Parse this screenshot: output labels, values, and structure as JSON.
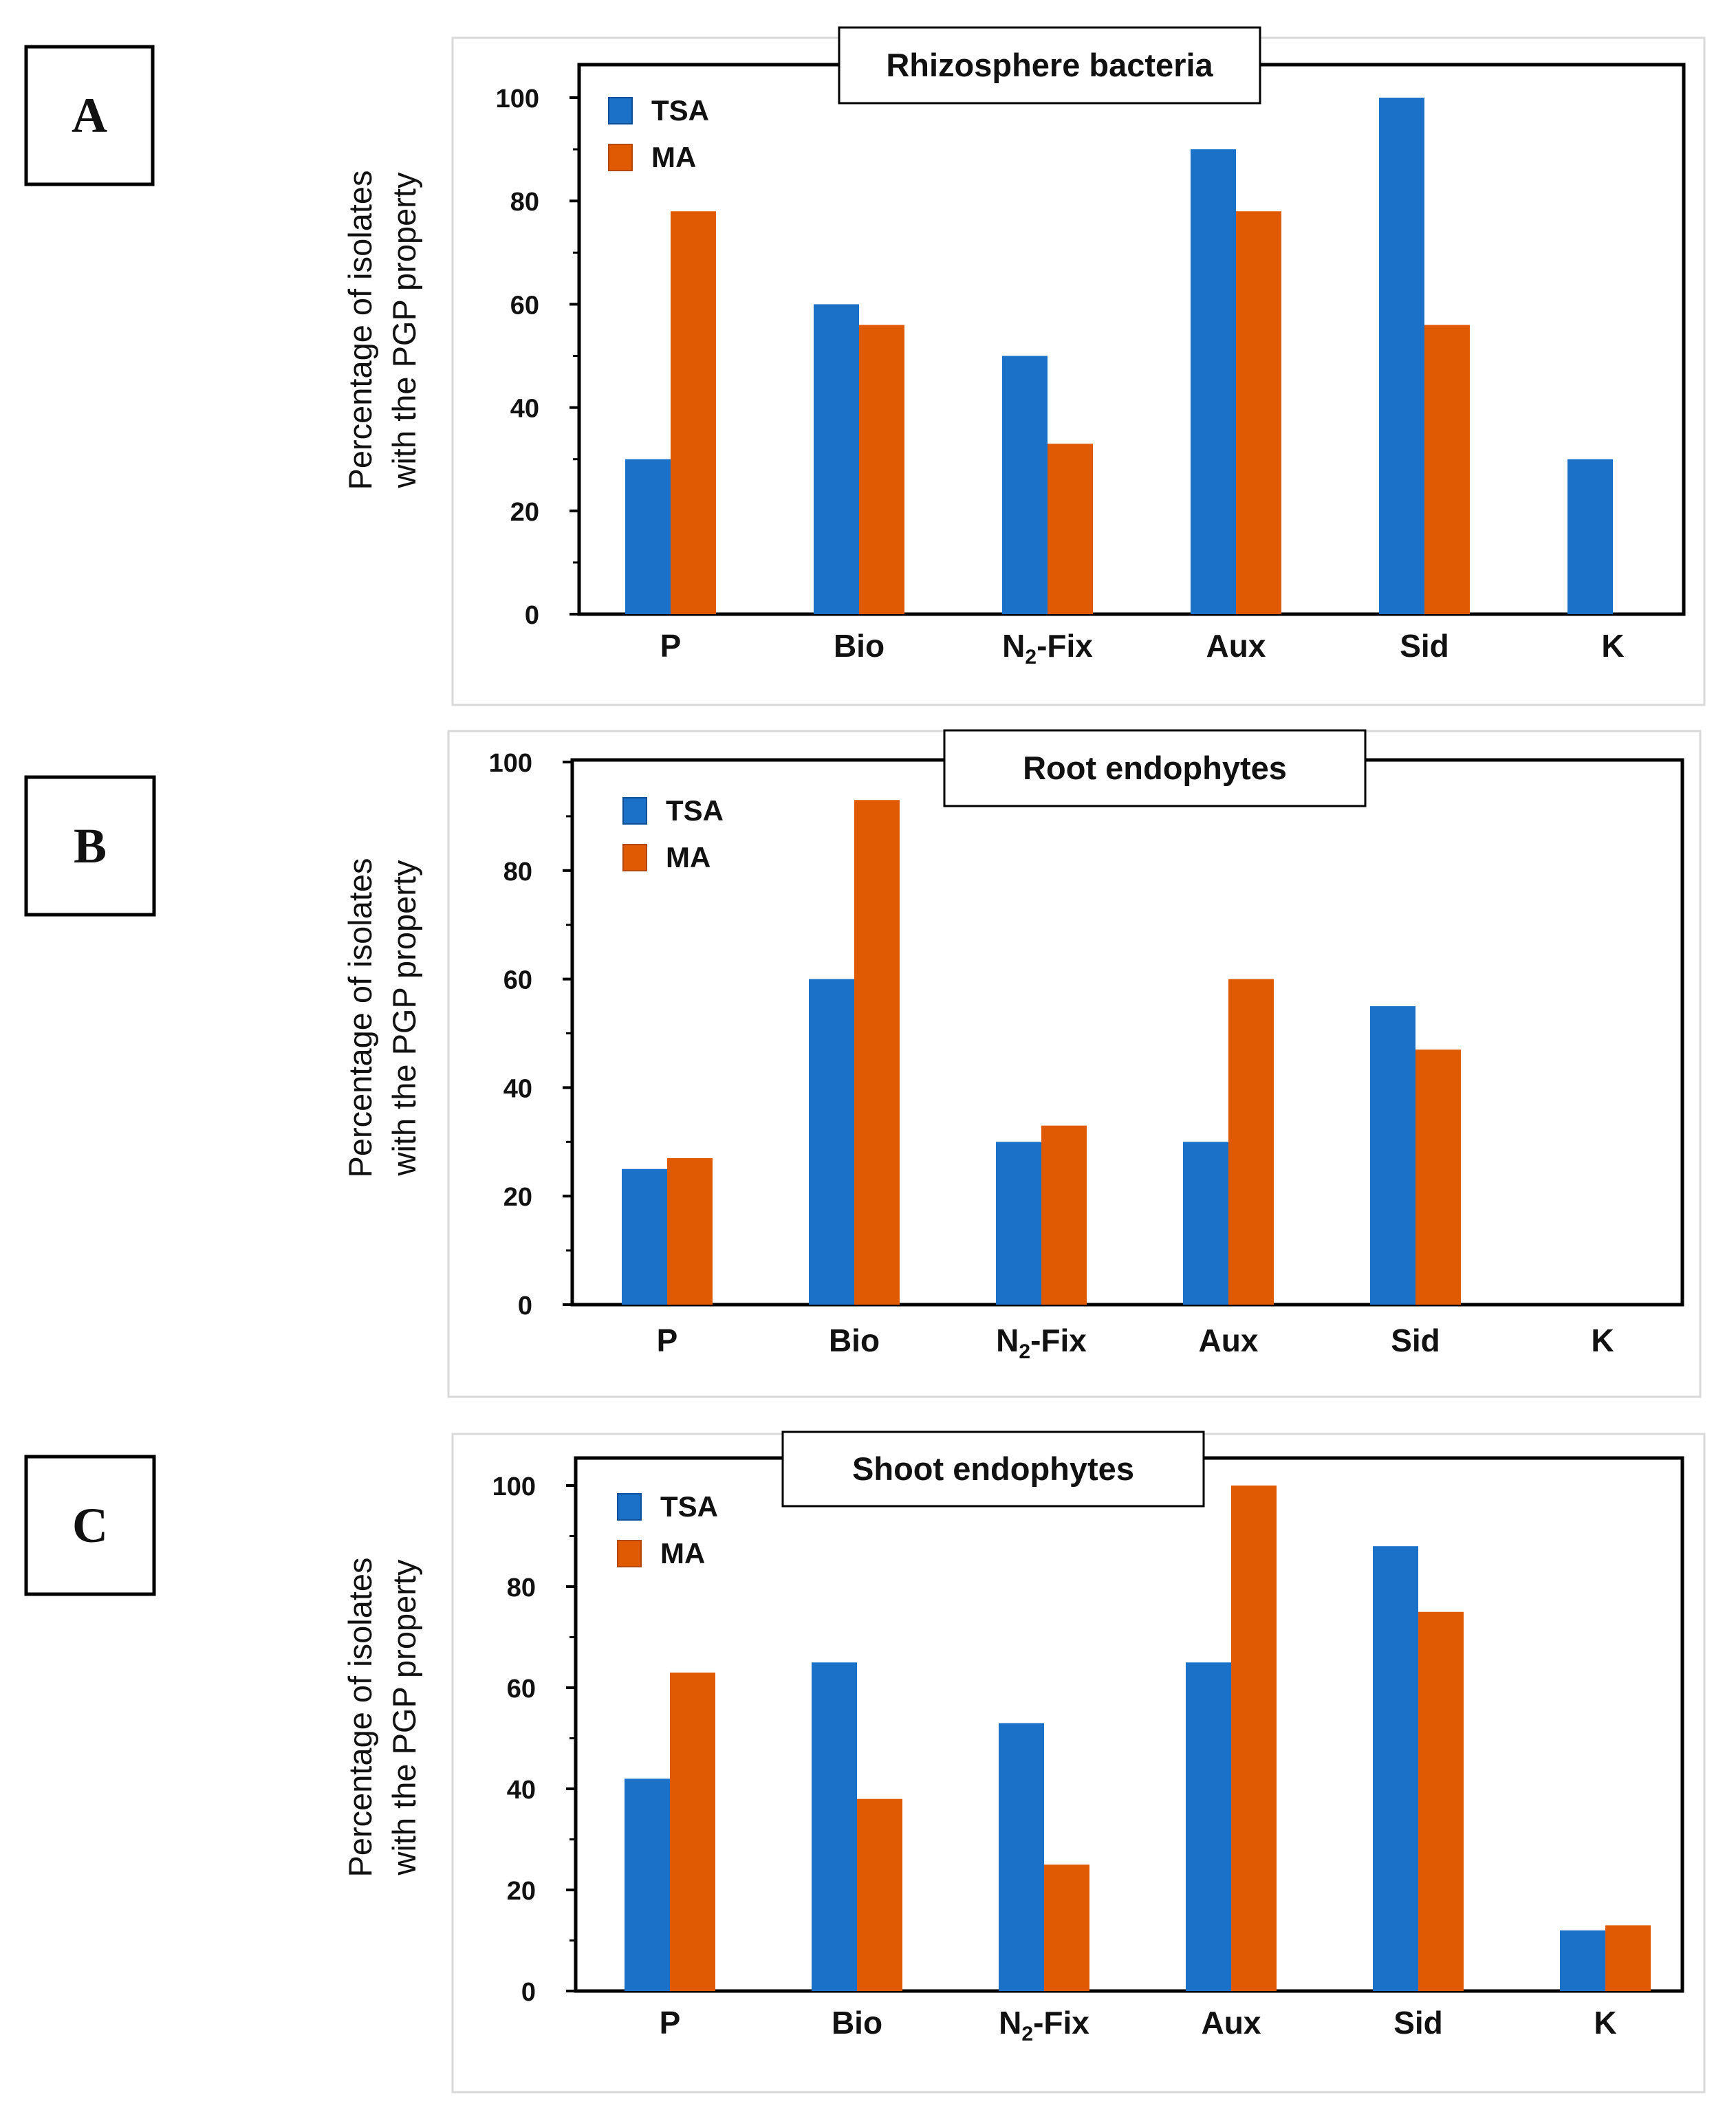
{
  "colors": {
    "TSA": "#1b70c8",
    "MA": "#e05a04",
    "frame": "#d9d9d9",
    "axis": "#000000"
  },
  "chart_data": [
    {
      "type": "bar",
      "panel_letter": "A",
      "title": "Rhizosphere bacteria",
      "ylabel_line1": "Percentage of isolates",
      "ylabel_line2": "with the PGP property",
      "xlabel": "",
      "categories": [
        "P",
        "Bio",
        "N-Fix",
        "Aux",
        "Sid",
        "K"
      ],
      "category_labels": [
        {
          "main": "P",
          "sub": "",
          "rest": ""
        },
        {
          "main": "Bio",
          "sub": "",
          "rest": ""
        },
        {
          "main": "N",
          "sub": "2",
          "rest": "-Fix"
        },
        {
          "main": "Aux",
          "sub": "",
          "rest": ""
        },
        {
          "main": "Sid",
          "sub": "",
          "rest": ""
        },
        {
          "main": "K",
          "sub": "",
          "rest": ""
        }
      ],
      "series": [
        {
          "name": "TSA",
          "values": [
            30,
            60,
            50,
            90,
            100,
            30
          ]
        },
        {
          "name": "MA",
          "values": [
            78,
            56,
            33,
            78,
            56,
            0
          ]
        }
      ],
      "ylim": [
        0,
        105
      ],
      "yticks": [
        "0",
        "20",
        "40",
        "60",
        "80",
        "100"
      ],
      "legend_position": "top-left"
    },
    {
      "type": "bar",
      "panel_letter": "B",
      "title": "Root endophytes",
      "ylabel_line1": "Percentage of isolates",
      "ylabel_line2": "with the PGP property",
      "xlabel": "",
      "categories": [
        "P",
        "Bio",
        "N-Fix",
        "Aux",
        "Sid",
        "K"
      ],
      "category_labels": [
        {
          "main": "P",
          "sub": "",
          "rest": ""
        },
        {
          "main": "Bio",
          "sub": "",
          "rest": ""
        },
        {
          "main": "N",
          "sub": "2",
          "rest": "-Fix"
        },
        {
          "main": "Aux",
          "sub": "",
          "rest": ""
        },
        {
          "main": "Sid",
          "sub": "",
          "rest": ""
        },
        {
          "main": "K",
          "sub": "",
          "rest": ""
        }
      ],
      "series": [
        {
          "name": "TSA",
          "values": [
            25,
            60,
            30,
            30,
            55,
            0
          ]
        },
        {
          "name": "MA",
          "values": [
            27,
            93,
            33,
            60,
            47,
            0
          ]
        }
      ],
      "ylim": [
        0,
        100
      ],
      "yticks": [
        "0",
        "20",
        "40",
        "60",
        "80",
        "100"
      ],
      "legend_position": "top-left"
    },
    {
      "type": "bar",
      "panel_letter": "C",
      "title": "Shoot endophytes",
      "ylabel_line1": "Percentage of isolates",
      "ylabel_line2": "with the PGP property",
      "xlabel": "",
      "categories": [
        "P",
        "Bio",
        "N-Fix",
        "Aux",
        "Sid",
        "K"
      ],
      "category_labels": [
        {
          "main": "P",
          "sub": "",
          "rest": ""
        },
        {
          "main": "Bio",
          "sub": "",
          "rest": ""
        },
        {
          "main": "N",
          "sub": "2",
          "rest": "-Fix"
        },
        {
          "main": "Aux",
          "sub": "",
          "rest": ""
        },
        {
          "main": "Sid",
          "sub": "",
          "rest": ""
        },
        {
          "main": "K",
          "sub": "",
          "rest": ""
        }
      ],
      "series": [
        {
          "name": "TSA",
          "values": [
            42,
            65,
            53,
            65,
            88,
            12
          ]
        },
        {
          "name": "MA",
          "values": [
            63,
            38,
            25,
            100,
            75,
            13
          ]
        }
      ],
      "ylim": [
        0,
        104
      ],
      "yticks": [
        "0",
        "20",
        "40",
        "60",
        "80",
        "100"
      ],
      "legend_position": "top-left"
    }
  ]
}
